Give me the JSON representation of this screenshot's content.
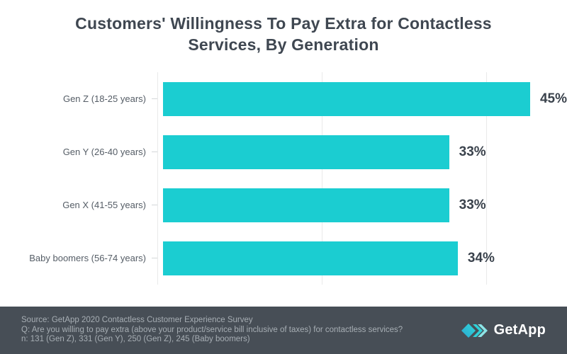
{
  "title": {
    "line1": "Customers' Willingness To Pay Extra for Contactless",
    "line2": "Services, By Generation"
  },
  "chart_data": {
    "type": "bar",
    "orientation": "horizontal",
    "title": "Customers' Willingness To Pay Extra for Contactless Services, By Generation",
    "categories": [
      "Gen Z (18-25 years)",
      "Gen Y (26-40 years)",
      "Gen X (41-55 years)",
      "Baby boomers (56-74 years)"
    ],
    "values": [
      45,
      33,
      33,
      34
    ],
    "value_labels": [
      "45%",
      "33%",
      "33%",
      "34%"
    ],
    "xlabel": "",
    "ylabel": "",
    "xlim": [
      0,
      46.6
    ],
    "gridline_values": [
      0,
      20,
      40
    ],
    "grid": true,
    "legend": false,
    "bar_color": "#1BCDD1"
  },
  "footer": {
    "lines": [
      "Source: GetApp 2020 Contactless Customer Experience Survey",
      "Q: Are you willing to pay extra (above your product/service bill inclusive of taxes) for contactless services?",
      "n: 131 (Gen Z), 331 (Gen Y), 250 (Gen Z), 245 (Baby boomers)"
    ],
    "logo_text": "GetApp"
  },
  "colors": {
    "bar": "#1BCDD1",
    "title_text": "#3F4751",
    "label_text": "#555D66",
    "value_text": "#3A424C",
    "gridline": "#E9EAEA",
    "footer_bg": "#474E56",
    "footer_text": "#A7AEB4",
    "logo_diamond_start": "#2BA9D0",
    "logo_diamond_end": "#30D6DA",
    "logo_chevron_1": "#2FD0D8",
    "logo_chevron_2": "#8CE4E6"
  }
}
